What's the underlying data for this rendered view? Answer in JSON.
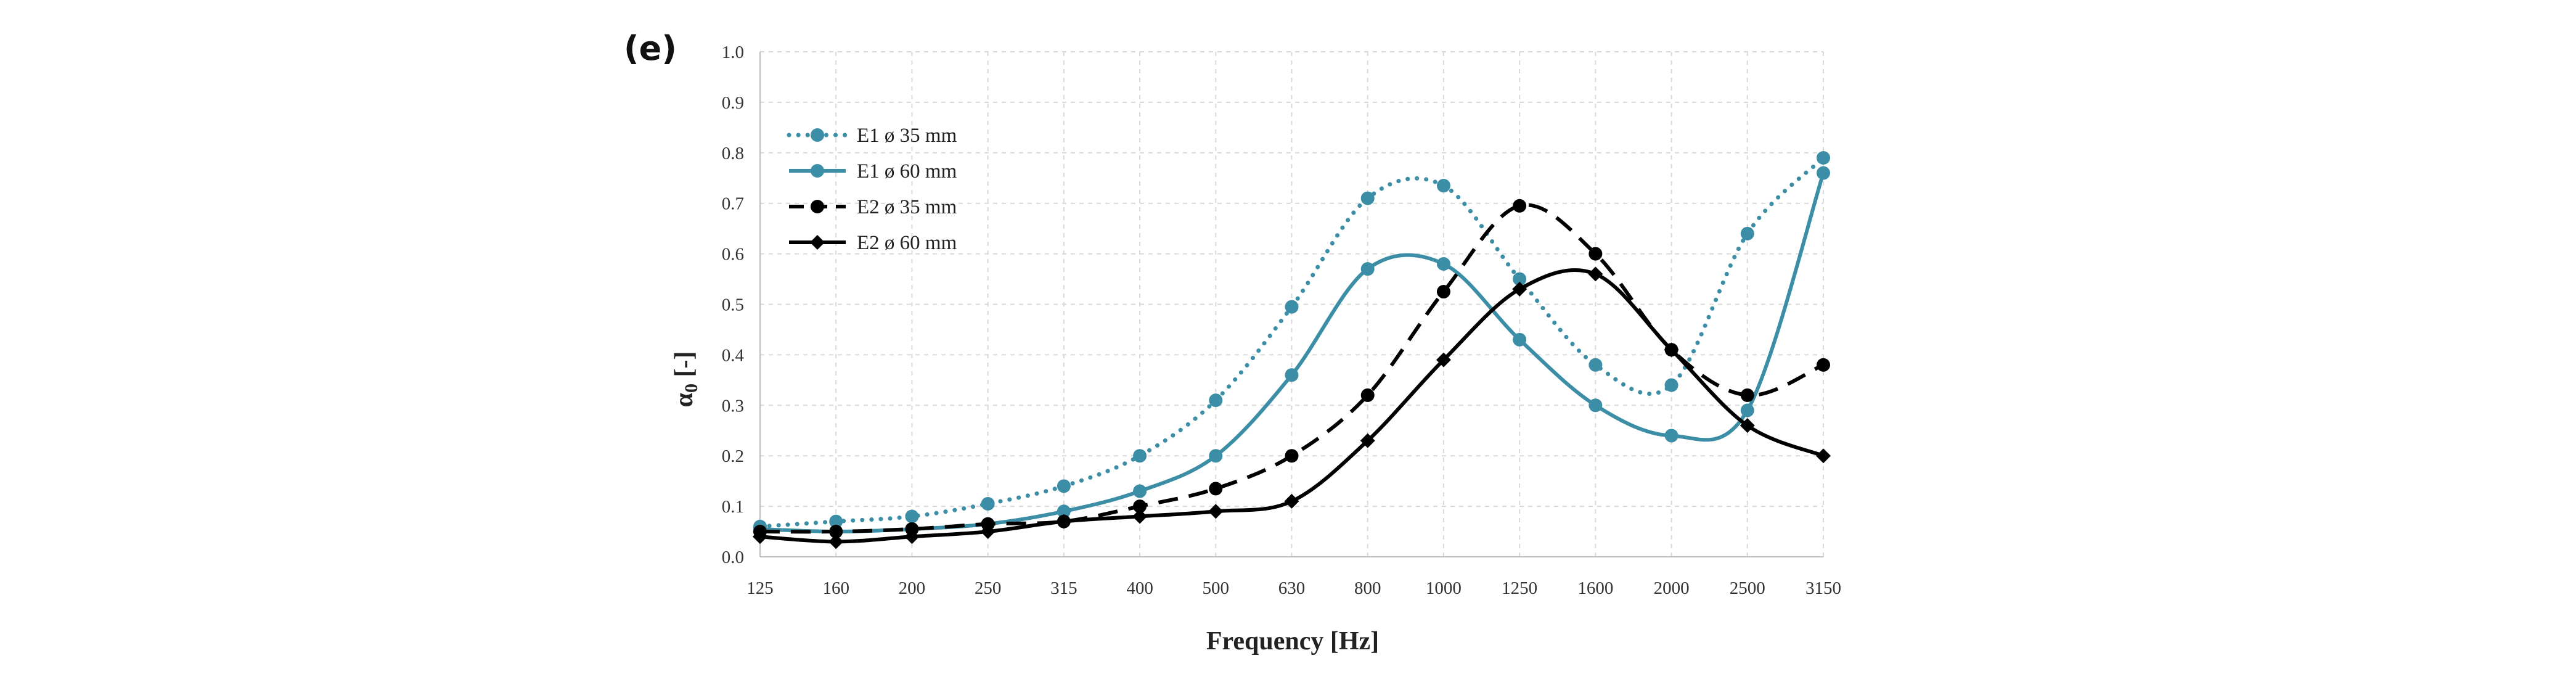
{
  "panel_label": "(e)",
  "chart_data": {
    "type": "line",
    "title": "",
    "xlabel": "Frequency [Hz]",
    "ylabel_main": "α",
    "ylabel_sub": "0",
    "ylabel_rest": " [-]",
    "categories": [
      "125",
      "160",
      "200",
      "250",
      "315",
      "400",
      "500",
      "630",
      "800",
      "1000",
      "1250",
      "1600",
      "2000",
      "2500",
      "3150"
    ],
    "ylim": [
      0,
      1.0
    ],
    "yticks": [
      "0.0",
      "0.1",
      "0.2",
      "0.3",
      "0.4",
      "0.5",
      "0.6",
      "0.7",
      "0.8",
      "0.9",
      "1.0"
    ],
    "grid": true,
    "legend_position": "top-left",
    "series": [
      {
        "name": "E1 ø 35 mm",
        "color": "#3b8ea5",
        "line": "dotted",
        "marker": "circle",
        "values": [
          0.06,
          0.07,
          0.08,
          0.105,
          0.14,
          0.2,
          0.31,
          0.495,
          0.71,
          0.735,
          0.55,
          0.38,
          0.34,
          0.64,
          0.79
        ]
      },
      {
        "name": "E1 ø 60 mm",
        "color": "#3b8ea5",
        "line": "solid",
        "marker": "circle",
        "values": [
          0.055,
          0.05,
          0.055,
          0.065,
          0.09,
          0.13,
          0.2,
          0.36,
          0.57,
          0.58,
          0.43,
          0.3,
          0.24,
          0.29,
          0.76
        ]
      },
      {
        "name": "E2 ø 35 mm",
        "color": "#000000",
        "line": "dashed",
        "marker": "circle",
        "values": [
          0.05,
          0.05,
          0.055,
          0.065,
          0.07,
          0.1,
          0.135,
          0.2,
          0.32,
          0.525,
          0.695,
          0.6,
          0.41,
          0.32,
          0.38
        ]
      },
      {
        "name": "E2 ø 60 mm",
        "color": "#000000",
        "line": "solid",
        "marker": "diamond",
        "values": [
          0.04,
          0.03,
          0.04,
          0.05,
          0.07,
          0.08,
          0.09,
          0.11,
          0.23,
          0.39,
          0.53,
          0.56,
          0.41,
          0.26,
          0.2
        ]
      }
    ]
  }
}
